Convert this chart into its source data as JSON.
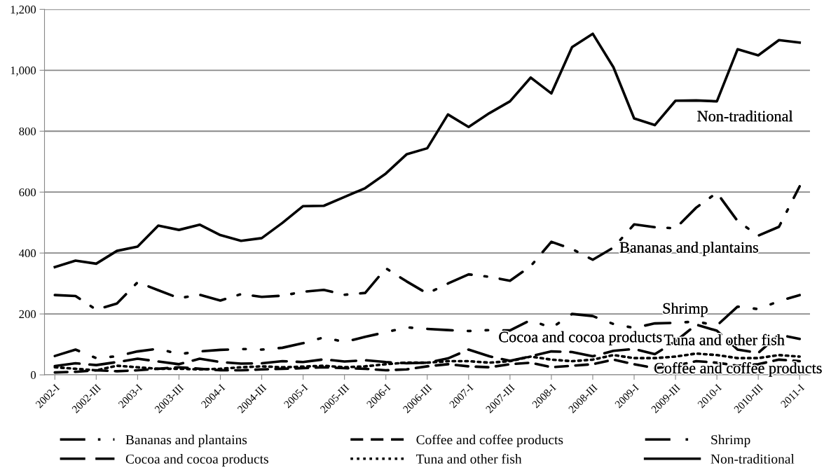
{
  "chart_data": {
    "type": "line",
    "categories": [
      "2002-I",
      null,
      "2002-III",
      null,
      "2003-I",
      null,
      "2003-III",
      null,
      "2004-I",
      null,
      "2004-III",
      null,
      "2005-I",
      null,
      "2005-III",
      null,
      "2006-I",
      null,
      "2006-III",
      null,
      "2007-I",
      null,
      "2007-III",
      null,
      "2008-I",
      null,
      "2008-III",
      null,
      "2009-I",
      null,
      "2009-III",
      null,
      "2010-I",
      null,
      "2010-III",
      null,
      "2011-I"
    ],
    "series": [
      {
        "name": "Bananas and plantains",
        "color": "#000000",
        "line_style": "dashdot",
        "values": [
          262,
          259,
          214,
          234,
          304,
          278,
          252,
          263,
          244,
          265,
          256,
          260,
          273,
          279,
          263,
          269,
          350,
          307,
          267,
          300,
          330,
          322,
          309,
          357,
          437,
          413,
          378,
          418,
          494,
          485,
          481,
          549,
          598,
          505,
          457,
          486,
          619
        ]
      },
      {
        "name": "Coffee and coffee products",
        "color": "#000000",
        "line_style": "dashed",
        "values": [
          8,
          10,
          15,
          12,
          15,
          20,
          25,
          20,
          15,
          15,
          18,
          20,
          22,
          25,
          22,
          20,
          15,
          18,
          28,
          35,
          28,
          25,
          35,
          40,
          25,
          30,
          35,
          50,
          35,
          22,
          30,
          45,
          40,
          30,
          35,
          50,
          45
        ]
      },
      {
        "name": "Shrimp",
        "color": "#000000",
        "line_style": "longdashdot",
        "values": [
          62,
          83,
          55,
          61,
          77,
          86,
          68,
          77,
          82,
          85,
          83,
          89,
          104,
          123,
          108,
          125,
          140,
          156,
          151,
          147,
          144,
          147,
          146,
          180,
          154,
          200,
          193,
          167,
          154,
          169,
          171,
          175,
          162,
          224,
          216,
          242,
          262
        ]
      },
      {
        "name": "Cocoa and cocoa products",
        "color": "#000000",
        "line_style": "longdash",
        "values": [
          29,
          38,
          32,
          42,
          53,
          44,
          35,
          53,
          42,
          37,
          38,
          45,
          42,
          51,
          44,
          48,
          42,
          38,
          40,
          54,
          83,
          61,
          46,
          61,
          77,
          75,
          61,
          79,
          85,
          68,
          110,
          165,
          145,
          83,
          72,
          132,
          118
        ]
      },
      {
        "name": "Tuna and other fish",
        "color": "#000000",
        "line_style": "dotted",
        "values": [
          25,
          20,
          15,
          30,
          25,
          20,
          20,
          18,
          20,
          25,
          28,
          25,
          27,
          30,
          25,
          28,
          35,
          40,
          40,
          45,
          45,
          40,
          45,
          60,
          50,
          45,
          50,
          65,
          55,
          55,
          60,
          70,
          65,
          55,
          55,
          65,
          60
        ]
      },
      {
        "name": "Non-traditional",
        "color": "#000000",
        "line_style": "solid",
        "values": [
          354,
          375,
          365,
          407,
          421,
          490,
          476,
          493,
          459,
          440,
          449,
          499,
          554,
          555,
          584,
          613,
          661,
          724,
          744,
          855,
          814,
          859,
          898,
          976,
          924,
          1076,
          1120,
          1010,
          842,
          820,
          900,
          901,
          898,
          1069,
          1049,
          1099,
          1091
        ]
      }
    ],
    "annotations": [
      "Non-traditional",
      "Bananas and plantains",
      "Shrimp",
      "Cocoa and cocoa products",
      "Tuna and other fish",
      "Coffee and coffee products"
    ],
    "ylim": [
      0,
      1200
    ],
    "yticks": [
      {
        "value": 0,
        "label": "0"
      },
      {
        "value": 200,
        "label": "200"
      },
      {
        "value": 400,
        "label": "400"
      },
      {
        "value": 600,
        "label": "600"
      },
      {
        "value": 800,
        "label": "800"
      },
      {
        "value": 1000,
        "label": "1,000"
      },
      {
        "value": 1200,
        "label": "1,200"
      }
    ],
    "grid": "y",
    "legend": "bottom"
  }
}
